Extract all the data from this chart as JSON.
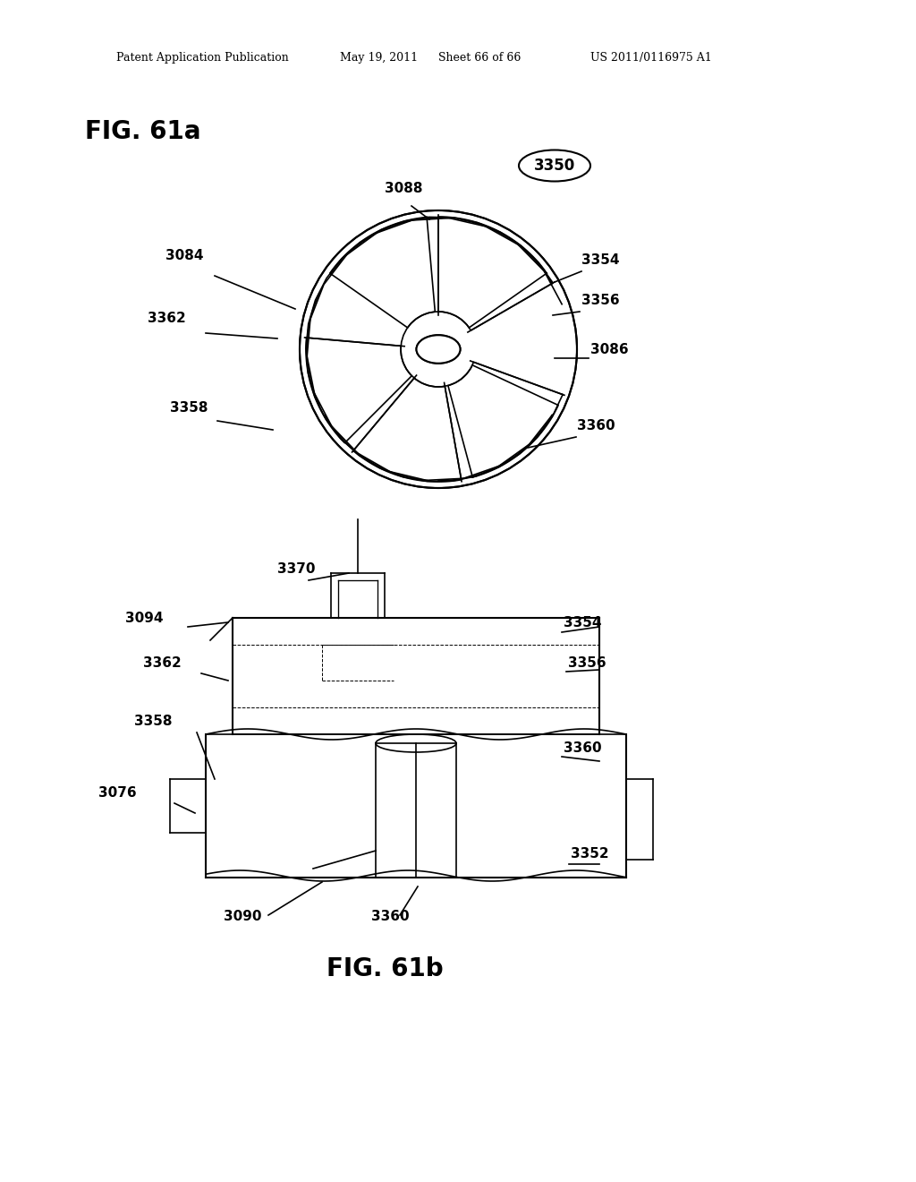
{
  "bg_color": "#ffffff",
  "header_text": "Patent Application Publication",
  "header_date": "May 19, 2011",
  "header_sheet": "Sheet 66 of 66",
  "header_patent": "US 2011/0116975 A1",
  "fig_a_label": "FIG. 61a",
  "fig_b_label": "FIG. 61b",
  "label_3350": "3350",
  "label_3088": "3088",
  "label_3084": "3084",
  "label_3362_a": "3362",
  "label_3086": "3086",
  "label_3354_a": "3354",
  "label_3356_a": "3356",
  "label_3358_a": "3358",
  "label_3360_a": "3360",
  "label_3370": "3370",
  "label_3094": "3094",
  "label_3362_b": "3362",
  "label_3354_b": "3354",
  "label_3356_b": "3356",
  "label_3358_b": "3358",
  "label_3360_b1": "3360",
  "label_3360_b2": "3360",
  "label_3076": "3076",
  "label_3090": "3090",
  "label_3352": "3352"
}
